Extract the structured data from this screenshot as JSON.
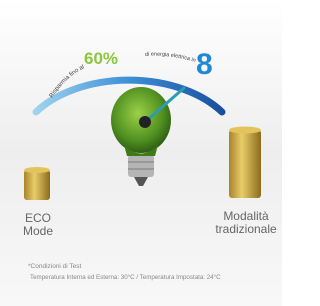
{
  "gauge": {
    "prefix": "Risparmia fino al",
    "percent": "60%",
    "middle": "di energia elettrica in",
    "number": "8"
  },
  "labels": {
    "eco": "ECO\nMode",
    "traditional": "Modalità\ntradizionale"
  },
  "footnote": {
    "title": "*Condizioni di Test",
    "text": "Temperatura Interna ed Esterna: 30°C / Temperatura Impostata: 24°C"
  }
}
